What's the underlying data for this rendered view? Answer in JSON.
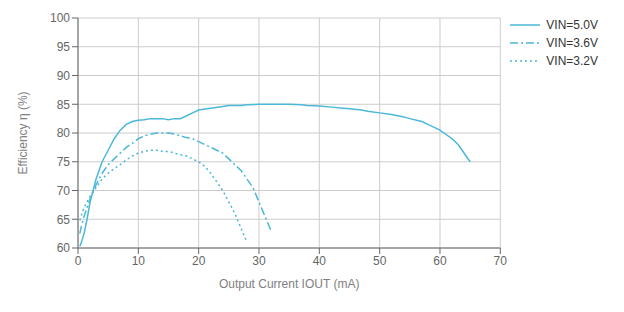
{
  "chart_data": {
    "type": "line",
    "xlabel": "Output Current IOUT (mA)",
    "ylabel": "Efficiency η (%)",
    "xlim": [
      0,
      70
    ],
    "ylim": [
      60,
      100
    ],
    "xticks": [
      0,
      10,
      20,
      30,
      40,
      50,
      60,
      70
    ],
    "yticks": [
      60,
      65,
      70,
      75,
      80,
      85,
      90,
      95,
      100
    ],
    "grid": true,
    "legend": "upper right",
    "series": [
      {
        "name": "VIN=5.0V",
        "color": "#4AB8D8",
        "line_style": "solid",
        "x": [
          0.3,
          0.5,
          1,
          1.5,
          2,
          3,
          4,
          5,
          6,
          7,
          8,
          9,
          10,
          11,
          12,
          13,
          14,
          15,
          16,
          17,
          18,
          19,
          20,
          22,
          24,
          25,
          27,
          28,
          30,
          32,
          34,
          35,
          37,
          38,
          40,
          42,
          44,
          45,
          47,
          48,
          50,
          52,
          54,
          55,
          57,
          58,
          60,
          62,
          63,
          65
        ],
        "values": [
          60.3,
          60.8,
          62.5,
          65,
          68,
          72,
          75,
          77,
          79,
          80.5,
          81.5,
          82,
          82.2,
          82.3,
          82.5,
          82.5,
          82.5,
          82.3,
          82.5,
          82.5,
          83,
          83.5,
          84,
          84.3,
          84.6,
          84.8,
          84.8,
          84.9,
          85,
          85,
          85,
          85,
          84.9,
          84.8,
          84.7,
          84.5,
          84.3,
          84.2,
          84,
          83.8,
          83.5,
          83.2,
          82.8,
          82.5,
          82,
          81.5,
          80.5,
          79,
          78,
          75
        ]
      },
      {
        "name": "VIN=3.6V",
        "color": "#4AB8D8",
        "line_style": "dashdot",
        "x": [
          0.3,
          0.5,
          1,
          1.5,
          2,
          3,
          4,
          5,
          6,
          7,
          8,
          9,
          10,
          11,
          12,
          13,
          14,
          15,
          16,
          17,
          18,
          19,
          20,
          21,
          22,
          23,
          24,
          25,
          26,
          27,
          28,
          29,
          30,
          31,
          32
        ],
        "values": [
          62.5,
          63.5,
          65.5,
          67,
          68.5,
          71,
          73,
          74.5,
          75.5,
          76.5,
          77.5,
          78.2,
          79,
          79.5,
          79.8,
          80,
          80,
          80,
          79.8,
          79.5,
          79.2,
          79,
          78.5,
          78,
          77.5,
          77,
          76.5,
          75.5,
          74.5,
          73.5,
          72,
          70.5,
          68,
          65.5,
          63
        ]
      },
      {
        "name": "VIN=3.2V",
        "color": "#4AB8D8",
        "line_style": "dotted",
        "x": [
          0.3,
          0.5,
          1,
          1.5,
          2,
          3,
          4,
          5,
          6,
          7,
          8,
          9,
          10,
          11,
          12,
          13,
          14,
          15,
          16,
          17,
          18,
          19,
          20,
          21,
          22,
          23,
          24,
          25,
          26,
          27,
          28
        ],
        "values": [
          64.8,
          65.5,
          67,
          68,
          69,
          70.5,
          72,
          73,
          73.8,
          74.5,
          75.3,
          76,
          76.5,
          76.8,
          77,
          77,
          76.8,
          76.8,
          76.5,
          76.2,
          76,
          75.5,
          75,
          74.2,
          73,
          71.5,
          70,
          68,
          66,
          63.5,
          61
        ]
      }
    ]
  }
}
